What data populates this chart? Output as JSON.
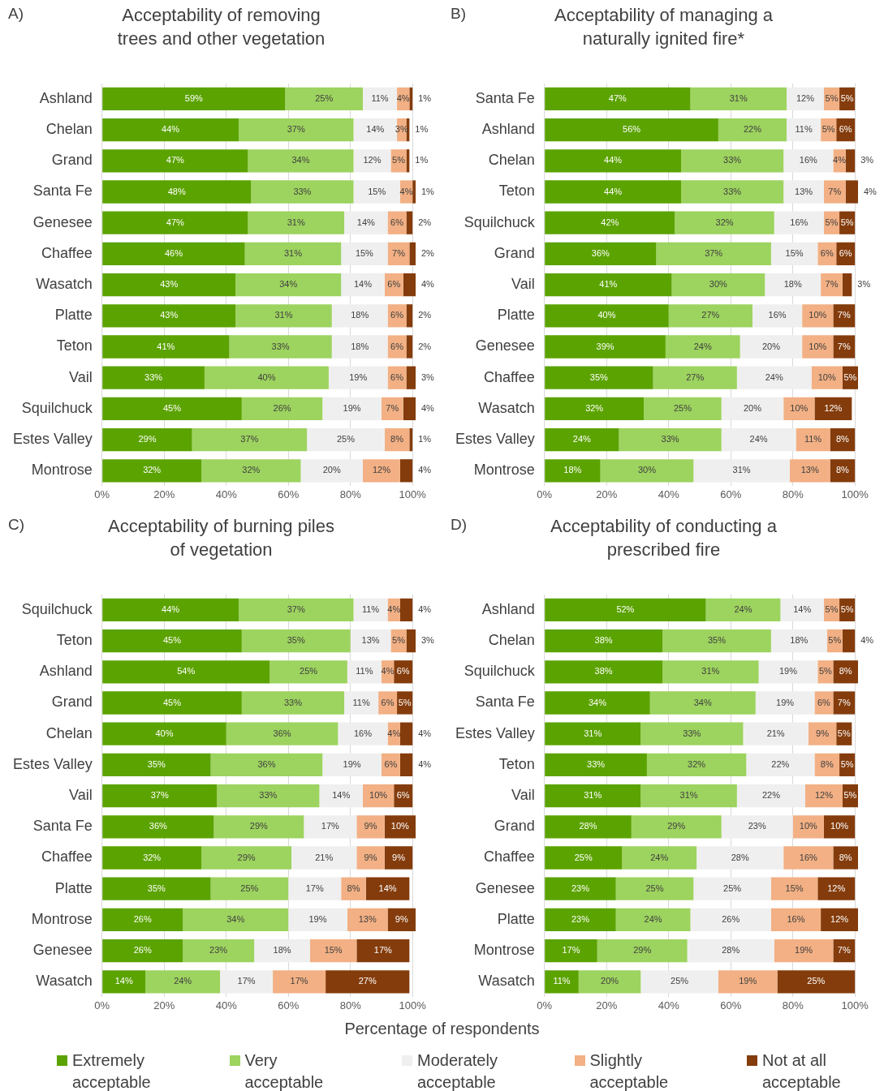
{
  "chart_data": [
    {
      "type": "bar",
      "title": "Acceptability of removing trees and other vegetation",
      "annotations": [
        "A)"
      ],
      "legend": "bottom",
      "orientation": "horizontal",
      "stacked": true,
      "grid": "x",
      "xlim": [
        0,
        101
      ],
      "xticks": [
        {
          "value": 0,
          "label": "0%"
        },
        {
          "value": 20,
          "label": "20%"
        },
        {
          "value": 40,
          "label": "40%"
        },
        {
          "value": 60,
          "label": "60%"
        },
        {
          "value": 80,
          "label": "80%"
        },
        {
          "value": 100,
          "label": "100%"
        }
      ],
      "categories": [
        "Ashland",
        "Chelan",
        "Grand",
        "Santa Fe",
        "Genesee",
        "Chaffee",
        "Wasatch",
        "Platte",
        "Teton",
        "Vail",
        "Squilchuck",
        "Estes Valley",
        "Montrose"
      ],
      "series": [
        {
          "name": "Extremely acceptable",
          "color": "#5ba300",
          "values": [
            59,
            44,
            47,
            48,
            47,
            46,
            43,
            43,
            41,
            33,
            45,
            29,
            32
          ],
          "value_labels": [
            "59%",
            "44%",
            "47%",
            "48%",
            "47%",
            "46%",
            "43%",
            "43%",
            "41%",
            "33%",
            "45%",
            "29%",
            "32%"
          ]
        },
        {
          "name": "Very acceptable",
          "color": "#9dd35f",
          "values": [
            25,
            37,
            34,
            33,
            31,
            31,
            34,
            31,
            33,
            40,
            26,
            37,
            32
          ],
          "value_labels": [
            "25%",
            "37%",
            "34%",
            "33%",
            "31%",
            "31%",
            "34%",
            "31%",
            "33%",
            "40%",
            "26%",
            "37%",
            "32%"
          ]
        },
        {
          "name": "Moderately acceptable",
          "color": "#efefef",
          "values": [
            11,
            14,
            12,
            15,
            14,
            15,
            14,
            18,
            18,
            19,
            19,
            25,
            20
          ],
          "value_labels": [
            "11%",
            "14%",
            "12%",
            "15%",
            "14%",
            "15%",
            "14%",
            "18%",
            "18%",
            "19%",
            "19%",
            "25%",
            "20%"
          ]
        },
        {
          "name": "Slightly acceptable",
          "color": "#f2b084",
          "values": [
            4,
            3,
            5,
            4,
            6,
            7,
            6,
            6,
            6,
            6,
            7,
            8,
            12
          ],
          "value_labels": [
            "4%",
            "3%",
            "5%",
            "4%",
            "6%",
            "7%",
            "6%",
            "6%",
            "6%",
            "6%",
            "7%",
            "8%",
            "12%"
          ]
        },
        {
          "name": "Not at all acceptable",
          "color": "#843c0c",
          "values": [
            1,
            1,
            1,
            1,
            2,
            2,
            4,
            2,
            2,
            3,
            4,
            1,
            4
          ],
          "value_labels": [
            "1%",
            "1%",
            "1%",
            "1%",
            "2%",
            "2%",
            "4%",
            "2%",
            "2%",
            "3%",
            "4%",
            "1%",
            "4%"
          ]
        }
      ]
    },
    {
      "type": "bar",
      "title": "Acceptability of managing a naturally ignited fire*",
      "annotations": [
        "B)"
      ],
      "legend": "bottom",
      "orientation": "horizontal",
      "stacked": true,
      "grid": "x",
      "xlim": [
        0,
        101
      ],
      "xticks": [
        {
          "value": 0,
          "label": "0%"
        },
        {
          "value": 20,
          "label": "20%"
        },
        {
          "value": 40,
          "label": "40%"
        },
        {
          "value": 60,
          "label": "60%"
        },
        {
          "value": 80,
          "label": "80%"
        },
        {
          "value": 100,
          "label": "100%"
        }
      ],
      "categories": [
        "Santa Fe",
        "Ashland",
        "Chelan",
        "Teton",
        "Squilchuck",
        "Grand",
        "Vail",
        "Platte",
        "Genesee",
        "Chaffee",
        "Wasatch",
        "Estes Valley",
        "Montrose"
      ],
      "series": [
        {
          "name": "Extremely acceptable",
          "color": "#5ba300",
          "values": [
            47,
            56,
            44,
            44,
            42,
            36,
            41,
            40,
            39,
            35,
            32,
            24,
            18
          ],
          "value_labels": [
            "47%",
            "56%",
            "44%",
            "44%",
            "42%",
            "36%",
            "41%",
            "40%",
            "39%",
            "35%",
            "32%",
            "24%",
            "18%"
          ]
        },
        {
          "name": "Very acceptable",
          "color": "#9dd35f",
          "values": [
            31,
            22,
            33,
            33,
            32,
            37,
            30,
            27,
            24,
            27,
            25,
            33,
            30
          ],
          "value_labels": [
            "31%",
            "22%",
            "33%",
            "33%",
            "32%",
            "37%",
            "30%",
            "27%",
            "24%",
            "27%",
            "25%",
            "33%",
            "30%"
          ]
        },
        {
          "name": "Moderately acceptable",
          "color": "#efefef",
          "values": [
            12,
            11,
            16,
            13,
            16,
            15,
            18,
            16,
            20,
            24,
            20,
            24,
            31
          ],
          "value_labels": [
            "12%",
            "11%",
            "16%",
            "13%",
            "16%",
            "15%",
            "18%",
            "16%",
            "20%",
            "24%",
            "20%",
            "24%",
            "31%"
          ]
        },
        {
          "name": "Slightly acceptable",
          "color": "#f2b084",
          "values": [
            5,
            5,
            4,
            7,
            5,
            6,
            7,
            10,
            10,
            10,
            10,
            11,
            13
          ],
          "value_labels": [
            "5%",
            "5%",
            "4%",
            "7%",
            "5%",
            "6%",
            "7%",
            "10%",
            "10%",
            "10%",
            "10%",
            "11%",
            "13%"
          ]
        },
        {
          "name": "Not at all acceptable",
          "color": "#843c0c",
          "values": [
            5,
            6,
            3,
            4,
            5,
            6,
            3,
            7,
            7,
            5,
            12,
            8,
            8
          ],
          "value_labels": [
            "5%",
            "6%",
            "3%",
            "4%",
            "5%",
            "6%",
            "3%",
            "7%",
            "7%",
            "5%",
            "12%",
            "8%",
            "8%"
          ]
        }
      ]
    },
    {
      "type": "bar",
      "title": "Acceptability of burning piles of vegetation",
      "annotations": [
        "C)"
      ],
      "legend": "bottom",
      "orientation": "horizontal",
      "stacked": true,
      "grid": "x",
      "xlim": [
        0,
        101
      ],
      "xticks": [
        {
          "value": 0,
          "label": "0%"
        },
        {
          "value": 20,
          "label": "20%"
        },
        {
          "value": 40,
          "label": "40%"
        },
        {
          "value": 60,
          "label": "60%"
        },
        {
          "value": 80,
          "label": "80%"
        },
        {
          "value": 100,
          "label": "100%"
        }
      ],
      "categories": [
        "Squilchuck",
        "Teton",
        "Ashland",
        "Grand",
        "Chelan",
        "Estes Valley",
        "Vail",
        "Santa Fe",
        "Chaffee",
        "Platte",
        "Montrose",
        "Genesee",
        "Wasatch"
      ],
      "series": [
        {
          "name": "Extremely acceptable",
          "color": "#5ba300",
          "values": [
            44,
            45,
            54,
            45,
            40,
            35,
            37,
            36,
            32,
            35,
            26,
            26,
            14
          ],
          "value_labels": [
            "44%",
            "45%",
            "54%",
            "45%",
            "40%",
            "35%",
            "37%",
            "36%",
            "32%",
            "35%",
            "26%",
            "26%",
            "14%"
          ]
        },
        {
          "name": "Very acceptable",
          "color": "#9dd35f",
          "values": [
            37,
            35,
            25,
            33,
            36,
            36,
            33,
            29,
            29,
            25,
            34,
            23,
            24
          ],
          "value_labels": [
            "37%",
            "35%",
            "25%",
            "33%",
            "36%",
            "36%",
            "33%",
            "29%",
            "29%",
            "25%",
            "34%",
            "23%",
            "24%"
          ]
        },
        {
          "name": "Moderately acceptable",
          "color": "#efefef",
          "values": [
            11,
            13,
            11,
            11,
            16,
            19,
            14,
            17,
            21,
            17,
            19,
            18,
            17
          ],
          "value_labels": [
            "11%",
            "13%",
            "11%",
            "11%",
            "16%",
            "19%",
            "14%",
            "17%",
            "21%",
            "17%",
            "19%",
            "18%",
            "17%"
          ]
        },
        {
          "name": "Slightly acceptable",
          "color": "#f2b084",
          "values": [
            4,
            5,
            4,
            6,
            4,
            6,
            10,
            9,
            9,
            8,
            13,
            15,
            17
          ],
          "value_labels": [
            "4%",
            "5%",
            "4%",
            "6%",
            "4%",
            "6%",
            "10%",
            "9%",
            "9%",
            "8%",
            "13%",
            "15%",
            "17%"
          ]
        },
        {
          "name": "Not at all acceptable",
          "color": "#843c0c",
          "values": [
            4,
            3,
            6,
            5,
            4,
            4,
            6,
            10,
            9,
            14,
            9,
            17,
            27
          ],
          "value_labels": [
            "4%",
            "3%",
            "6%",
            "5%",
            "4%",
            "4%",
            "6%",
            "10%",
            "9%",
            "14%",
            "9%",
            "17%",
            "27%"
          ]
        }
      ]
    },
    {
      "type": "bar",
      "title": "Acceptability of conducting a prescribed fire",
      "annotations": [
        "D)"
      ],
      "orientation": "horizontal",
      "stacked": true,
      "grid": "x",
      "xlim": [
        0,
        101
      ],
      "xticks": [
        {
          "value": 0,
          "label": "0%"
        },
        {
          "value": 20,
          "label": "20%"
        },
        {
          "value": 40,
          "label": "40%"
        },
        {
          "value": 60,
          "label": "60%"
        },
        {
          "value": 80,
          "label": "80%"
        },
        {
          "value": 100,
          "label": "100%"
        }
      ],
      "xlabel": "Percentage of respondents",
      "legend": "bottom",
      "categories": [
        "Ashland",
        "Chelan",
        "Squilchuck",
        "Santa Fe",
        "Estes Valley",
        "Teton",
        "Vail",
        "Grand",
        "Chaffee",
        "Genesee",
        "Platte",
        "Montrose",
        "Wasatch"
      ],
      "series": [
        {
          "name": "Extremely acceptable",
          "color": "#5ba300",
          "values": [
            52,
            38,
            38,
            34,
            31,
            33,
            31,
            28,
            25,
            23,
            23,
            17,
            11
          ],
          "value_labels": [
            "52%",
            "38%",
            "38%",
            "34%",
            "31%",
            "33%",
            "31%",
            "28%",
            "25%",
            "23%",
            "23%",
            "17%",
            "11%"
          ]
        },
        {
          "name": "Very acceptable",
          "color": "#9dd35f",
          "values": [
            24,
            35,
            31,
            34,
            33,
            32,
            31,
            29,
            24,
            25,
            24,
            29,
            20
          ],
          "value_labels": [
            "24%",
            "35%",
            "31%",
            "34%",
            "33%",
            "32%",
            "31%",
            "29%",
            "24%",
            "25%",
            "24%",
            "29%",
            "20%"
          ]
        },
        {
          "name": "Moderately acceptable",
          "color": "#efefef",
          "values": [
            14,
            18,
            19,
            19,
            21,
            22,
            22,
            23,
            28,
            25,
            26,
            28,
            25
          ],
          "value_labels": [
            "14%",
            "18%",
            "19%",
            "19%",
            "21%",
            "22%",
            "22%",
            "23%",
            "28%",
            "25%",
            "26%",
            "28%",
            "25%"
          ]
        },
        {
          "name": "Slightly acceptable",
          "color": "#f2b084",
          "values": [
            5,
            5,
            5,
            6,
            9,
            8,
            12,
            10,
            16,
            15,
            16,
            19,
            19
          ],
          "value_labels": [
            "5%",
            "5%",
            "5%",
            "6%",
            "9%",
            "8%",
            "12%",
            "10%",
            "16%",
            "15%",
            "16%",
            "19%",
            "19%"
          ]
        },
        {
          "name": "Not at all acceptable",
          "color": "#843c0c",
          "values": [
            5,
            4,
            8,
            7,
            5,
            5,
            5,
            10,
            8,
            12,
            12,
            7,
            25
          ],
          "value_labels": [
            "5%",
            "4%",
            "8%",
            "7%",
            "5%",
            "5%",
            "5%",
            "10%",
            "8%",
            "12%",
            "12%",
            "7%",
            "25%"
          ]
        }
      ]
    }
  ]
}
